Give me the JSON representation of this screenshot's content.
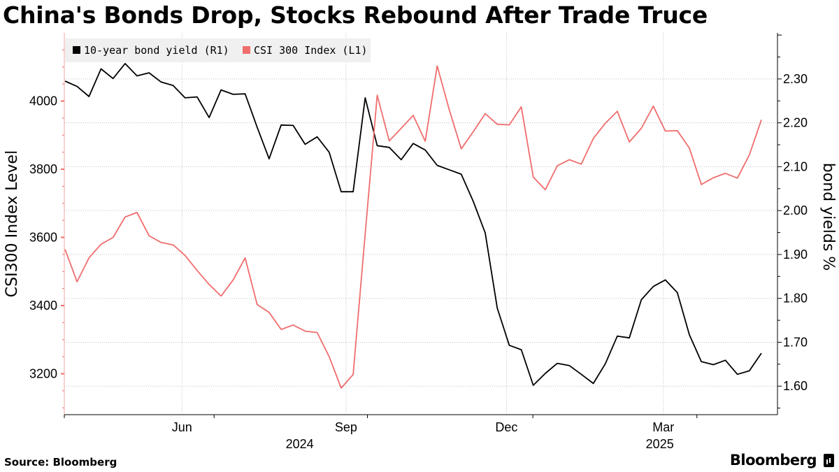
{
  "title": "China's Bonds Drop, Stocks Rebound After Trade Truce",
  "source": "Source: Bloomberg",
  "brand": "Bloomberg",
  "colors": {
    "yield": "#000000",
    "csi": "#f06d6d",
    "grid": "#bfbfbf",
    "legend_bg": "#f0f0f0"
  },
  "chart_data": {
    "type": "line",
    "title": "China's Bonds Drop, Stocks Rebound After Trade Truce",
    "legend": [
      {
        "label": "10-year bond yield  (R1)",
        "series": "yield"
      },
      {
        "label": "CSI 300 Index (L1)",
        "series": "csi"
      }
    ],
    "left_axis": {
      "label": "CSI300 Index Level",
      "range": [
        3080,
        4200
      ],
      "ticks": [
        3200,
        3400,
        3600,
        3800,
        4000
      ]
    },
    "right_axis": {
      "label": "bond yields %",
      "range": [
        1.535,
        2.405
      ],
      "ticks": [
        "1.60",
        "1.70",
        "1.80",
        "1.90",
        "2.00",
        "2.10",
        "2.20",
        "2.30"
      ]
    },
    "x_labels": [
      {
        "label": "Jun",
        "t": 0.165
      },
      {
        "label": "Sep",
        "t": 0.395
      },
      {
        "label": "Dec",
        "t": 0.62
      },
      {
        "label": "Mar",
        "t": 0.84
      }
    ],
    "year_labels": [
      {
        "label": "2024",
        "t": 0.33
      },
      {
        "label": "2025",
        "t": 0.835
      }
    ],
    "x_minor_ticks": [
      0.0,
      0.21,
      0.425,
      0.657,
      0.887
    ],
    "series": [
      {
        "name": "10-year bond yield",
        "axis": "right",
        "values": [
          2.295,
          2.283,
          2.26,
          2.323,
          2.301,
          2.335,
          2.307,
          2.314,
          2.293,
          2.285,
          2.257,
          2.259,
          2.212,
          2.275,
          2.265,
          2.266,
          2.19,
          2.118,
          2.195,
          2.194,
          2.151,
          2.168,
          2.133,
          2.043,
          2.043,
          2.257,
          2.148,
          2.144,
          2.116,
          2.153,
          2.138,
          2.103,
          2.093,
          2.083,
          2.021,
          1.949,
          1.778,
          1.693,
          1.683,
          1.602,
          1.629,
          1.652,
          1.647,
          1.627,
          1.606,
          1.651,
          1.714,
          1.71,
          1.797,
          1.827,
          1.842,
          1.813,
          1.717,
          1.656,
          1.649,
          1.659,
          1.627,
          1.635,
          1.675
        ]
      },
      {
        "name": "CSI 300 Index",
        "axis": "left",
        "values": [
          3565,
          3470,
          3540,
          3580,
          3600,
          3660,
          3673,
          3605,
          3585,
          3578,
          3547,
          3503,
          3462,
          3428,
          3475,
          3540,
          3403,
          3380,
          3330,
          3343,
          3325,
          3321,
          3250,
          3158,
          3198,
          3610,
          4017,
          3883,
          3920,
          3958,
          3882,
          4103,
          3975,
          3860,
          3910,
          3963,
          3932,
          3930,
          3983,
          3777,
          3740,
          3810,
          3828,
          3815,
          3890,
          3935,
          3970,
          3880,
          3920,
          3985,
          3912,
          3913,
          3862,
          3755,
          3775,
          3788,
          3774,
          3842,
          3945
        ]
      }
    ]
  }
}
